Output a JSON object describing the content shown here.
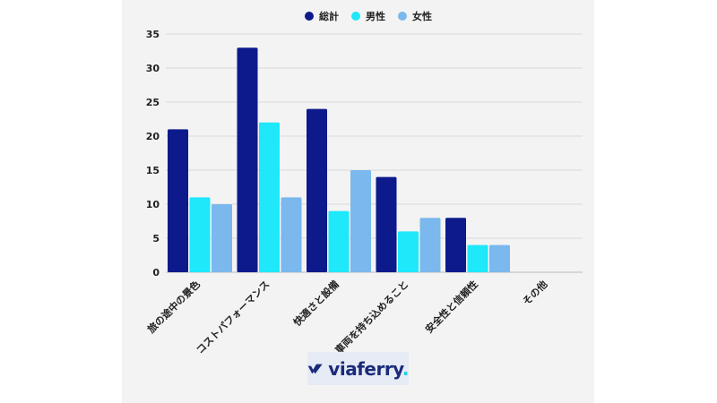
{
  "chart_data": {
    "type": "bar",
    "categories": [
      "旅の途中の景色",
      "コストパフォーマンス",
      "快適さと設備",
      "車両を持ち込めること",
      "安全性と信頼性",
      "その他"
    ],
    "series": [
      {
        "name": "総計",
        "color": "#0d1a8c",
        "values": [
          21,
          33,
          24,
          14,
          8,
          0
        ]
      },
      {
        "name": "男性",
        "color": "#1ee8fa",
        "values": [
          11,
          22,
          9,
          6,
          4,
          0
        ]
      },
      {
        "name": "女性",
        "color": "#7ab8ee",
        "values": [
          10,
          11,
          15,
          8,
          4,
          0
        ]
      }
    ],
    "ylim": [
      0,
      35
    ],
    "yticks": [
      0,
      5,
      10,
      15,
      20,
      25,
      30,
      35
    ],
    "grid": true,
    "legend": "top-center"
  },
  "logo": {
    "text": "viaferry",
    "dot": "."
  }
}
